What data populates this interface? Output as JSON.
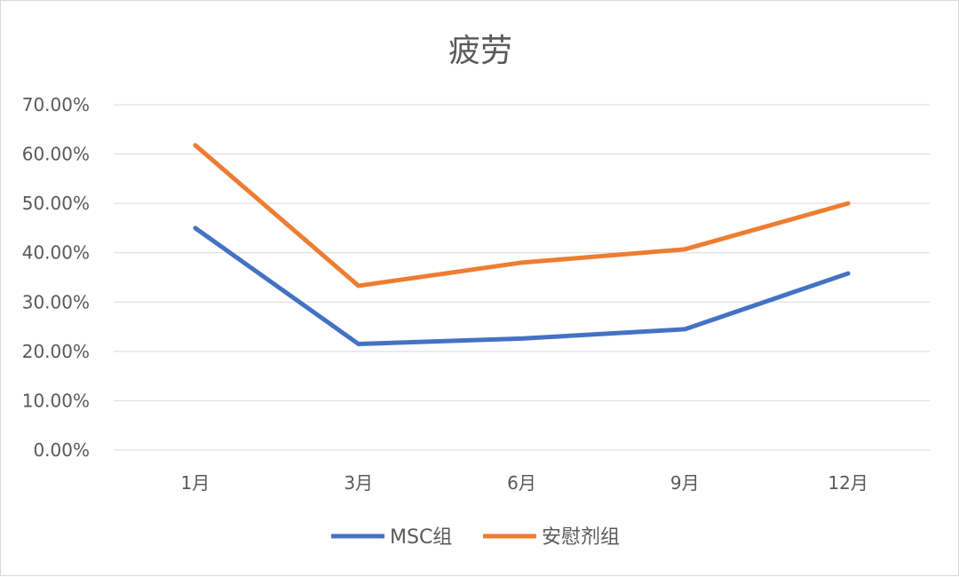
{
  "chart_data": {
    "type": "line",
    "title": "疲劳",
    "categories": [
      "1月",
      "3月",
      "6月",
      "9月",
      "12月"
    ],
    "series": [
      {
        "name": "MSC组",
        "values": [
          45.0,
          21.5,
          22.6,
          24.5,
          35.8
        ],
        "color": "#4472c4"
      },
      {
        "name": "安慰剂组",
        "values": [
          61.8,
          33.3,
          38.0,
          40.7,
          50.0
        ],
        "color": "#ed7d31"
      }
    ],
    "ylim": [
      0,
      70
    ],
    "yticks": [
      "0.00%",
      "10.00%",
      "20.00%",
      "30.00%",
      "40.00%",
      "50.00%",
      "60.00%",
      "70.00%"
    ],
    "grid": true,
    "legend": "bottom"
  }
}
